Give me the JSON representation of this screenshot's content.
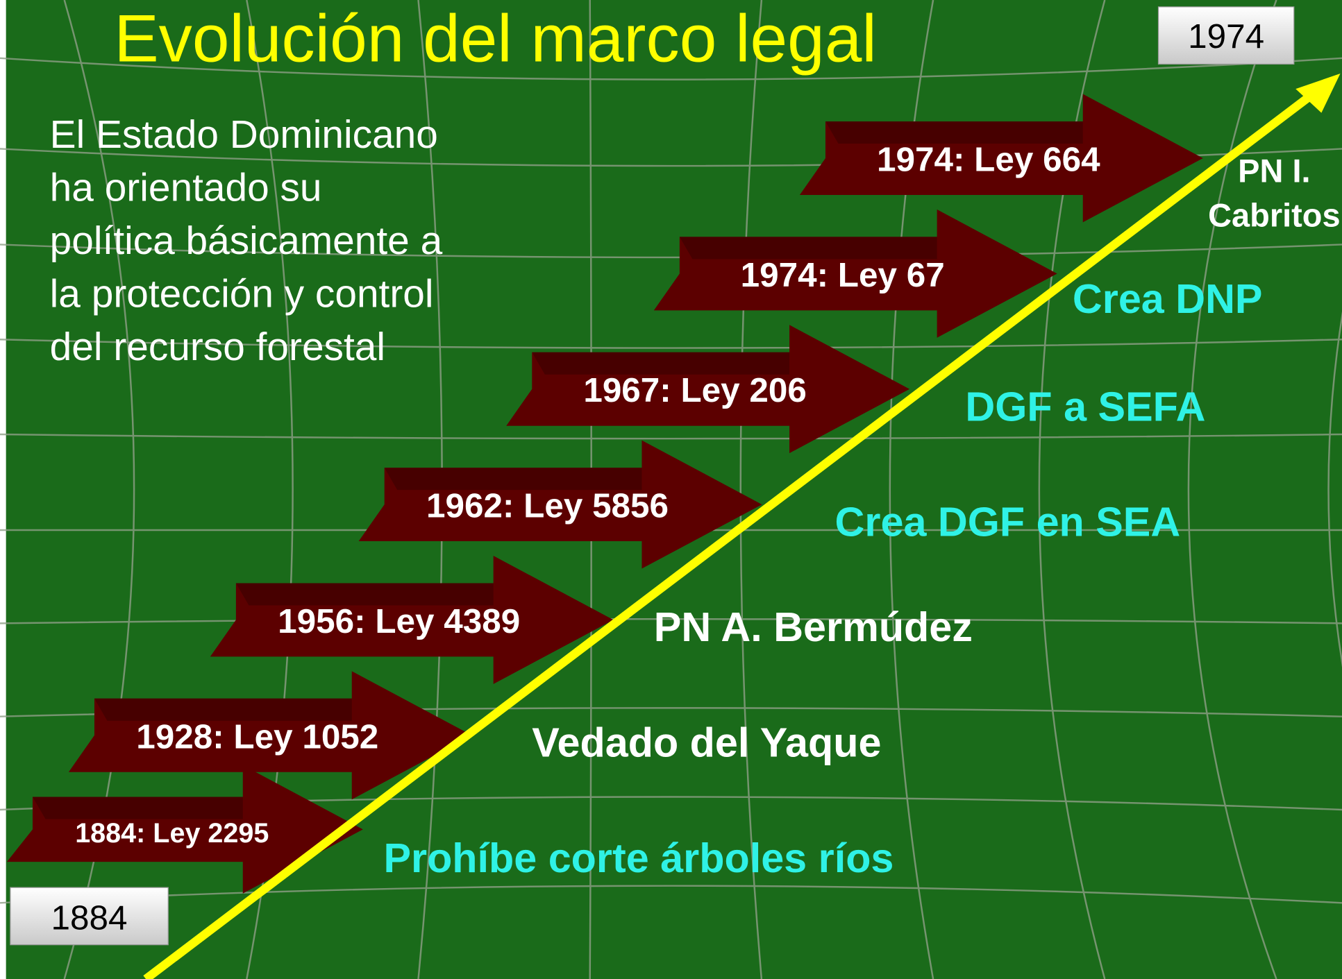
{
  "title": "Evolución del marco legal",
  "end_year": "1974",
  "start_year": "1884",
  "intro_lines": [
    "El Estado Dominicano",
    "ha orientado su",
    "política básicamente a",
    "la protección y control",
    "del recurso forestal"
  ],
  "steps": [
    {
      "label": "1884: Ley 2295",
      "note_lines": [
        "Prohíbe corte árboles ríos"
      ],
      "note_color": "#2ff2e6"
    },
    {
      "label": "1928: Ley 1052",
      "note_lines": [
        "Vedado del Yaque"
      ],
      "note_color": "#ffffff"
    },
    {
      "label": "1956: Ley 4389",
      "note_lines": [
        "PN A. Bermúdez"
      ],
      "note_color": "#ffffff"
    },
    {
      "label": "1962: Ley 5856",
      "note_lines": [
        "Crea DGF en SEA"
      ],
      "note_color": "#2ff2e6"
    },
    {
      "label": "1967: Ley 206",
      "note_lines": [
        "DGF a SEFA"
      ],
      "note_color": "#2ff2e6"
    },
    {
      "label": "1974: Ley 67",
      "note_lines": [
        "Crea DNP"
      ],
      "note_color": "#2ff2e6"
    },
    {
      "label": "1974: Ley 664",
      "note_lines": [
        "PN I.",
        "Cabritos"
      ],
      "note_color": "#ffffff"
    }
  ]
}
